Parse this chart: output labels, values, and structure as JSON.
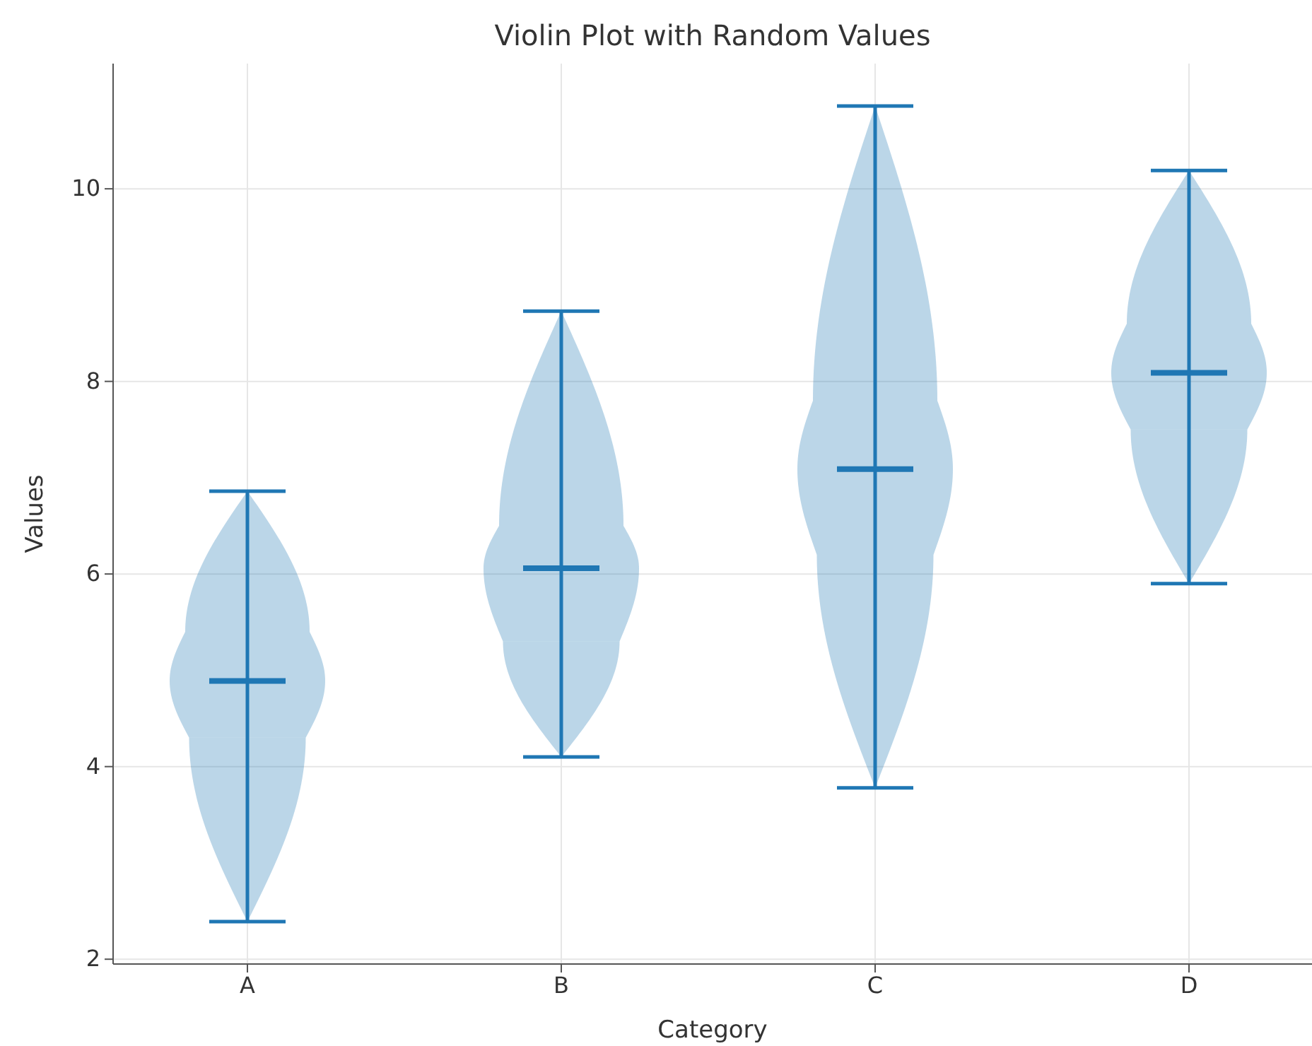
{
  "chart_data": {
    "type": "box",
    "title": "Violin Plot with Random Values",
    "xlabel": "Category",
    "ylabel": "Values",
    "categories": [
      "A",
      "B",
      "C",
      "D"
    ],
    "color": "#1f77b4",
    "boxes": [
      {
        "low": 2.39,
        "q1": 4.3,
        "median": 4.89,
        "q3": 5.4,
        "high": 6.86
      },
      {
        "low": 4.1,
        "q1": 5.3,
        "median": 6.06,
        "q3": 6.5,
        "high": 8.73
      },
      {
        "low": 3.78,
        "q1": 6.2,
        "median": 7.09,
        "q3": 7.8,
        "high": 10.86
      },
      {
        "low": 5.9,
        "q1": 7.5,
        "median": 8.09,
        "q3": 8.6,
        "high": 10.19
      }
    ],
    "ylim": [
      1.95,
      11.3
    ],
    "yticks": [
      2,
      4,
      6,
      8,
      10
    ],
    "grid": true
  }
}
